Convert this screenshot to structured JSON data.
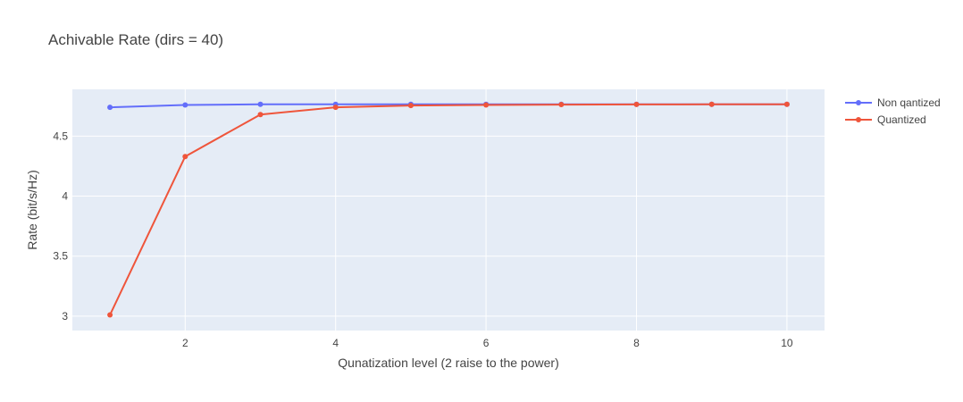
{
  "chart_data": {
    "type": "line",
    "title": "Achivable Rate (dirs = 40)",
    "xlabel": "Qunatization level (2 raise to the power)",
    "ylabel": "Rate (bit/s/Hz)",
    "xlim": [
      0.5,
      10.5
    ],
    "ylim": [
      2.88,
      4.89
    ],
    "xticks": [
      2,
      4,
      6,
      8,
      10
    ],
    "xtick_labels": [
      "2",
      "4",
      "6",
      "8",
      "10"
    ],
    "yticks": [
      3,
      3.5,
      4,
      4.5
    ],
    "ytick_labels": [
      "3",
      "3.5",
      "4",
      "4.5"
    ],
    "grid": true,
    "legend_position": "top-right",
    "x": [
      1,
      2,
      3,
      4,
      5,
      6,
      7,
      8,
      9,
      10
    ],
    "series": [
      {
        "name": "Non qantized",
        "color": "#636efa",
        "values": [
          4.74,
          4.76,
          4.765,
          4.765,
          4.765,
          4.765,
          4.765,
          4.765,
          4.765,
          4.765
        ]
      },
      {
        "name": "Quantized",
        "color": "#ef553b",
        "values": [
          3.01,
          4.33,
          4.68,
          4.74,
          4.755,
          4.76,
          4.763,
          4.764,
          4.765,
          4.765
        ]
      }
    ],
    "plot_background": "#e5ecf6"
  }
}
